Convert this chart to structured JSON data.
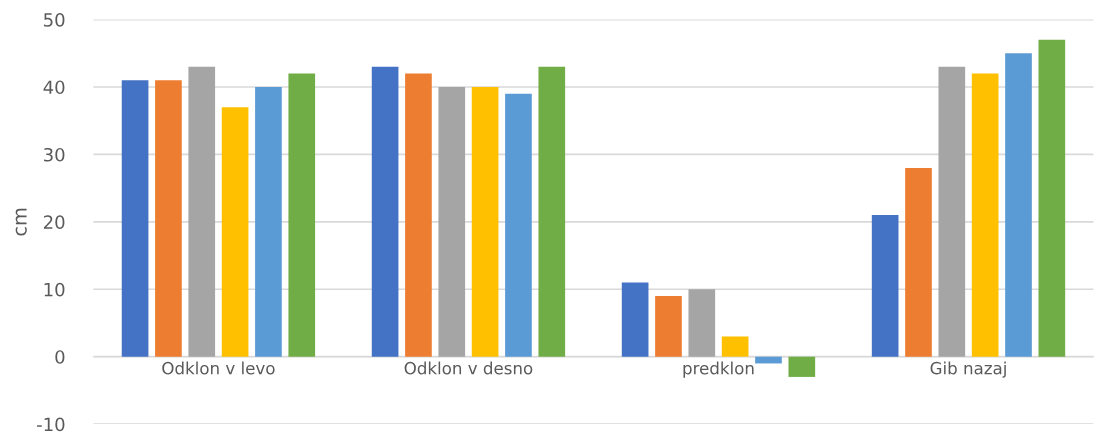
{
  "chart_data": {
    "type": "bar",
    "ylabel": "cm",
    "categories": [
      "Odklon v levo",
      "Odklon v desno",
      "predklon",
      "Gib nazaj"
    ],
    "series": [
      {
        "color": "#4472c4",
        "values": [
          41,
          43,
          11,
          21
        ]
      },
      {
        "color": "#ed7d31",
        "values": [
          41,
          42,
          9,
          28
        ]
      },
      {
        "color": "#a5a5a5",
        "values": [
          43,
          40,
          10,
          43
        ]
      },
      {
        "color": "#ffc000",
        "values": [
          37,
          40,
          3,
          42
        ]
      },
      {
        "color": "#5b9bd5",
        "values": [
          40,
          39,
          -1,
          45
        ]
      },
      {
        "color": "#70ad47",
        "values": [
          42,
          43,
          -3,
          47
        ]
      }
    ],
    "ylim": [
      -10,
      50
    ],
    "yticks": [
      -10,
      0,
      10,
      20,
      30,
      40,
      50
    ],
    "grid": "y",
    "legend": false
  }
}
